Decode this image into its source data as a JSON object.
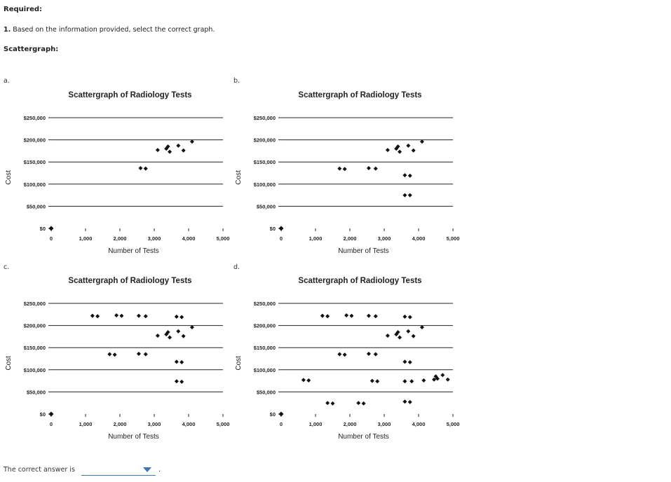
{
  "header": {
    "required": "Required:",
    "question_number": "1.",
    "question_text": "Based on the information provided, select the correct graph.",
    "section_label": "Scattergraph:"
  },
  "answer": {
    "prompt": "The correct answer is",
    "selected": "",
    "period": "."
  },
  "chart_data": [
    {
      "option": "a.",
      "type": "scatter",
      "title": "Scattergraph of Radiology Tests",
      "xlabel": "Number of Tests",
      "ylabel": "Cost",
      "xlim": [
        0,
        5000
      ],
      "ylim": [
        0,
        250000
      ],
      "x_ticks": [
        "0",
        "1,000",
        "2,000",
        "3,000",
        "4,000",
        "5,000"
      ],
      "y_ticks": [
        "$0",
        "$50,000",
        "$100,000",
        "$150,000",
        "$200,000",
        "$250,000"
      ],
      "grid": "horizontal",
      "points": [
        [
          2600,
          136000
        ],
        [
          2750,
          135000
        ],
        [
          3100,
          177000
        ],
        [
          3350,
          180000
        ],
        [
          3400,
          185000
        ],
        [
          3450,
          173000
        ],
        [
          3700,
          187000
        ],
        [
          3850,
          176000
        ],
        [
          4100,
          196000
        ]
      ]
    },
    {
      "option": "b.",
      "type": "scatter",
      "title": "Scattergraph of Radiology Tests",
      "xlabel": "Number of Tests",
      "ylabel": "Cost",
      "xlim": [
        0,
        5000
      ],
      "ylim": [
        0,
        250000
      ],
      "x_ticks": [
        "0",
        "1,000",
        "2,000",
        "3,000",
        "4,000",
        "5,000"
      ],
      "y_ticks": [
        "$0",
        "$50,000",
        "$100,000",
        "$150,000",
        "$200,000",
        "$250,000"
      ],
      "grid": "horizontal",
      "points": [
        [
          1700,
          135000
        ],
        [
          1850,
          134000
        ],
        [
          2550,
          136000
        ],
        [
          2750,
          135000
        ],
        [
          3100,
          177000
        ],
        [
          3350,
          180000
        ],
        [
          3400,
          185000
        ],
        [
          3450,
          173000
        ],
        [
          3700,
          187000
        ],
        [
          3850,
          176000
        ],
        [
          4100,
          196000
        ],
        [
          3600,
          120000
        ],
        [
          3750,
          119000
        ],
        [
          3600,
          75000
        ],
        [
          3750,
          75000
        ]
      ]
    },
    {
      "option": "c.",
      "type": "scatter",
      "title": "Scattergraph of Radiology Tests",
      "xlabel": "Number of Tests",
      "ylabel": "Cost",
      "xlim": [
        0,
        5000
      ],
      "ylim": [
        0,
        250000
      ],
      "x_ticks": [
        "0",
        "1,000",
        "2,000",
        "3,000",
        "4,000",
        "5,000"
      ],
      "y_ticks": [
        "$0",
        "$50,000",
        "$100,000",
        "$150,000",
        "$200,000",
        "$250,000"
      ],
      "grid": "horizontal",
      "points": [
        [
          1200,
          222000
        ],
        [
          1350,
          221000
        ],
        [
          1900,
          223000
        ],
        [
          2050,
          222000
        ],
        [
          2550,
          222000
        ],
        [
          2750,
          221000
        ],
        [
          3650,
          220000
        ],
        [
          3800,
          219000
        ],
        [
          3100,
          177000
        ],
        [
          3350,
          180000
        ],
        [
          3400,
          185000
        ],
        [
          3450,
          173000
        ],
        [
          3700,
          187000
        ],
        [
          3850,
          176000
        ],
        [
          4100,
          196000
        ],
        [
          1700,
          135000
        ],
        [
          1850,
          134000
        ],
        [
          2550,
          136000
        ],
        [
          2750,
          135000
        ],
        [
          3650,
          118000
        ],
        [
          3800,
          117000
        ],
        [
          3650,
          74000
        ],
        [
          3800,
          73000
        ]
      ]
    },
    {
      "option": "d.",
      "type": "scatter",
      "title": "Scattergraph of Radiology Tests",
      "xlabel": "Number of Tests",
      "ylabel": "Cost",
      "xlim": [
        0,
        5000
      ],
      "ylim": [
        0,
        250000
      ],
      "x_ticks": [
        "0",
        "1,000",
        "2,000",
        "3,000",
        "4,000",
        "5,000"
      ],
      "y_ticks": [
        "$0",
        "$50,000",
        "$100,000",
        "$150,000",
        "$200,000",
        "$250,000"
      ],
      "grid": "horizontal",
      "points": [
        [
          1200,
          222000
        ],
        [
          1350,
          221000
        ],
        [
          1900,
          223000
        ],
        [
          2050,
          222000
        ],
        [
          2550,
          222000
        ],
        [
          2750,
          221000
        ],
        [
          3600,
          220000
        ],
        [
          3750,
          219000
        ],
        [
          3100,
          177000
        ],
        [
          3350,
          180000
        ],
        [
          3400,
          185000
        ],
        [
          3450,
          173000
        ],
        [
          3700,
          187000
        ],
        [
          3850,
          176000
        ],
        [
          4100,
          196000
        ],
        [
          1700,
          135000
        ],
        [
          1850,
          134000
        ],
        [
          2550,
          136000
        ],
        [
          2750,
          135000
        ],
        [
          3600,
          118000
        ],
        [
          3750,
          117000
        ],
        [
          650,
          77000
        ],
        [
          800,
          76000
        ],
        [
          2650,
          75000
        ],
        [
          2800,
          74000
        ],
        [
          3600,
          74000
        ],
        [
          3800,
          74000
        ],
        [
          4150,
          76000
        ],
        [
          4450,
          78000
        ],
        [
          4500,
          85000
        ],
        [
          4550,
          80000
        ],
        [
          4700,
          88000
        ],
        [
          4850,
          78000
        ],
        [
          1350,
          25000
        ],
        [
          1500,
          24000
        ],
        [
          2250,
          25000
        ],
        [
          2400,
          24000
        ],
        [
          3600,
          28000
        ],
        [
          3750,
          27000
        ]
      ]
    }
  ]
}
